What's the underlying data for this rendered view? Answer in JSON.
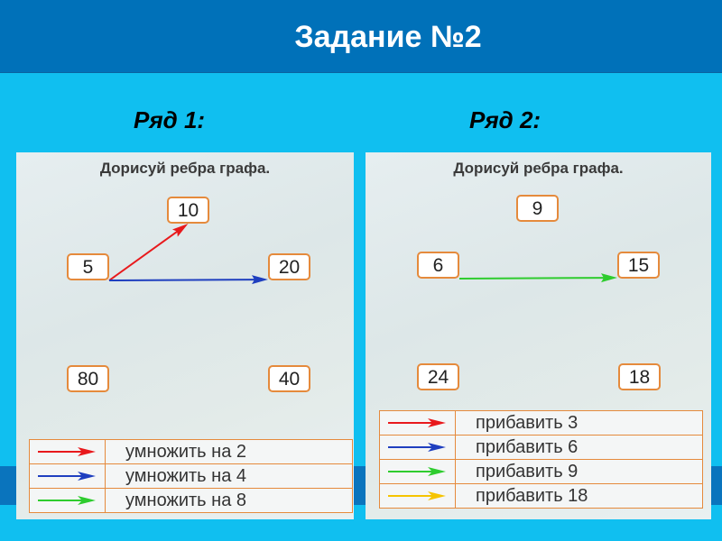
{
  "header": {
    "title": "Задание №2"
  },
  "colors": {
    "header": "#0071b9",
    "background": "#10bff0",
    "node_border": "#e58a3c",
    "red": "#e8191c",
    "blue": "#1f3fbf",
    "green": "#2ecc2e",
    "yellow": "#f5c400"
  },
  "rows": [
    {
      "label": "Ряд 1:",
      "instruction": "Дорисуй ребра графа.",
      "nodes": [
        "10",
        "5",
        "20",
        "80",
        "40"
      ],
      "edges": [
        {
          "from": "5",
          "to": "10",
          "color": "red"
        },
        {
          "from": "5",
          "to": "20",
          "color": "blue"
        }
      ],
      "legend": [
        {
          "color": "red",
          "label": "умножить на 2"
        },
        {
          "color": "blue",
          "label": "умножить на 4"
        },
        {
          "color": "green",
          "label": "умножить на 8"
        }
      ]
    },
    {
      "label": "Ряд 2:",
      "instruction": "Дорисуй ребра графа.",
      "nodes": [
        "9",
        "6",
        "15",
        "24",
        "18"
      ],
      "edges": [
        {
          "from": "6",
          "to": "15",
          "color": "green"
        }
      ],
      "legend": [
        {
          "color": "red",
          "label": "прибавить 3"
        },
        {
          "color": "blue",
          "label": "прибавить 6"
        },
        {
          "color": "green",
          "label": "прибавить 9"
        },
        {
          "color": "yellow",
          "label": "прибавить 18"
        }
      ]
    }
  ]
}
